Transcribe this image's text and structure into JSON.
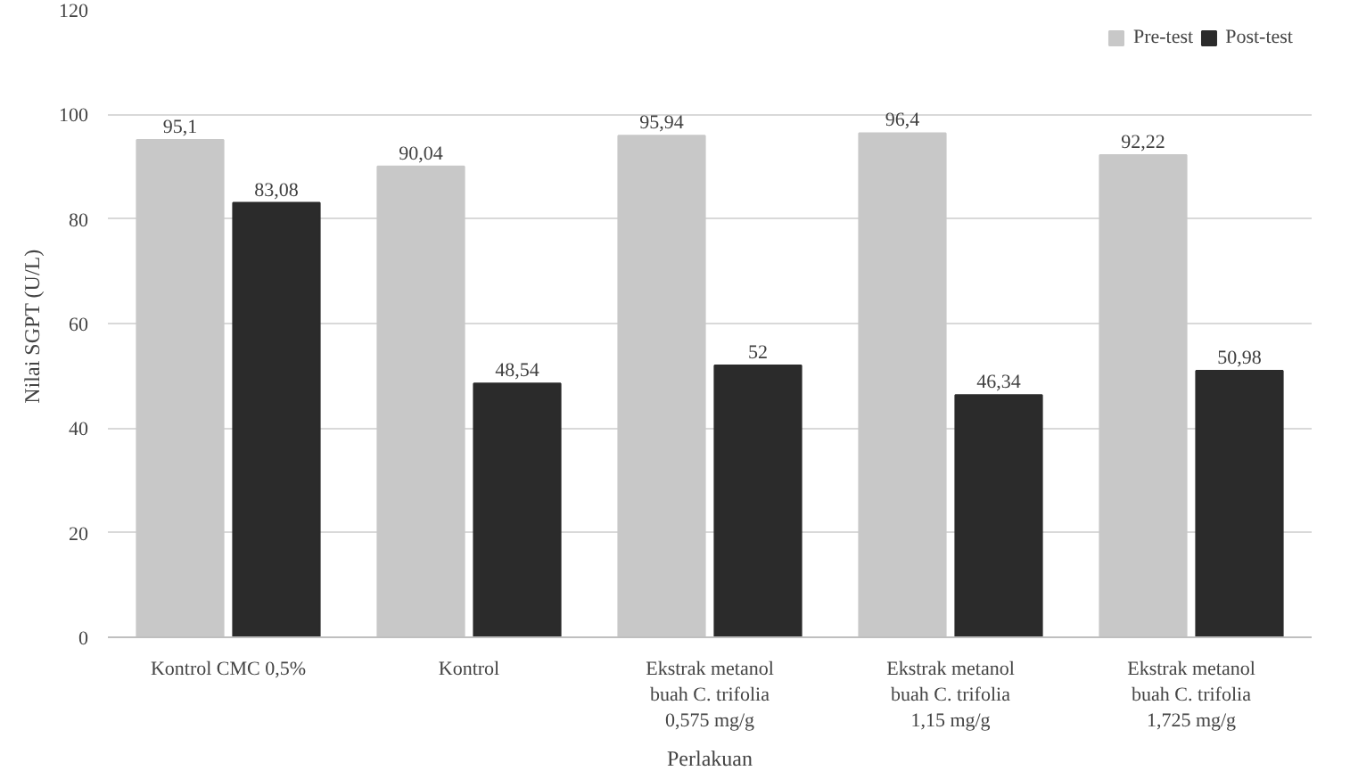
{
  "chart_data": {
    "type": "bar",
    "xlabel": "Perlakuan",
    "ylabel": "Nilai  SGPT (U/L)",
    "categories": [
      "Kontrol CMC 0,5%",
      "Kontrol",
      "Ekstrak metanol buah C. trifolia 0,575 mg/g",
      "Ekstrak metanol buah C. trifolia 1,15 mg/g",
      "Ekstrak metanol buah C. trifolia 1,725 mg/g"
    ],
    "series": [
      {
        "name": "Pre-test",
        "color": "#c8c8c8",
        "values": [
          95.1,
          90.04,
          95.94,
          96.4,
          92.22
        ],
        "value_labels": [
          "95,1",
          "90,04",
          "95,94",
          "96,4",
          "92,22"
        ]
      },
      {
        "name": "Post-test",
        "color": "#2b2b2b",
        "values": [
          83.08,
          48.54,
          52,
          46.34,
          50.98
        ],
        "value_labels": [
          "83,08",
          "48,54",
          "52",
          "46,34",
          "50,98"
        ]
      }
    ],
    "ylim": [
      0,
      120
    ],
    "yticks": [
      0,
      20,
      40,
      60,
      80,
      100,
      120
    ],
    "grid": "y",
    "legend": "top right"
  }
}
